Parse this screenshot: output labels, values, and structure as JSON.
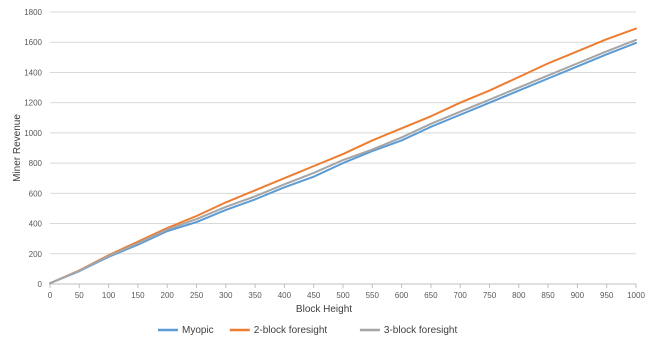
{
  "chart_data": {
    "type": "line",
    "title": "",
    "xlabel": "Block Height",
    "ylabel": "Miner Revenue",
    "xlim": [
      0,
      1000
    ],
    "ylim": [
      0,
      1800
    ],
    "xticks": [
      0,
      50,
      100,
      150,
      200,
      250,
      300,
      350,
      400,
      450,
      500,
      550,
      600,
      650,
      700,
      750,
      800,
      850,
      900,
      950,
      1000
    ],
    "yticks": [
      0,
      200,
      400,
      600,
      800,
      1000,
      1200,
      1400,
      1600,
      1800
    ],
    "grid": true,
    "legend_position": "bottom",
    "series": [
      {
        "name": "Myopic",
        "color": "#5b9bd5",
        "x": [
          0,
          50,
          100,
          150,
          200,
          250,
          300,
          350,
          400,
          450,
          500,
          550,
          600,
          650,
          700,
          750,
          800,
          850,
          900,
          950,
          1000
        ],
        "y": [
          5,
          85,
          180,
          260,
          350,
          410,
          490,
          560,
          640,
          710,
          800,
          880,
          950,
          1040,
          1120,
          1200,
          1280,
          1360,
          1440,
          1520,
          1595
        ]
      },
      {
        "name": "2-block foresight",
        "color": "#ed7d31",
        "x": [
          0,
          50,
          100,
          150,
          200,
          250,
          300,
          350,
          400,
          450,
          500,
          550,
          600,
          650,
          700,
          750,
          800,
          850,
          900,
          950,
          1000
        ],
        "y": [
          5,
          90,
          190,
          280,
          370,
          450,
          540,
          620,
          700,
          780,
          860,
          950,
          1030,
          1110,
          1200,
          1280,
          1370,
          1460,
          1540,
          1620,
          1690
        ]
      },
      {
        "name": "3-block foresight",
        "color": "#a5a5a5",
        "x": [
          0,
          50,
          100,
          150,
          200,
          250,
          300,
          350,
          400,
          450,
          500,
          550,
          600,
          650,
          700,
          750,
          800,
          850,
          900,
          950,
          1000
        ],
        "y": [
          5,
          88,
          185,
          270,
          360,
          430,
          510,
          580,
          660,
          735,
          820,
          890,
          970,
          1060,
          1140,
          1220,
          1300,
          1380,
          1460,
          1540,
          1615
        ]
      }
    ]
  }
}
